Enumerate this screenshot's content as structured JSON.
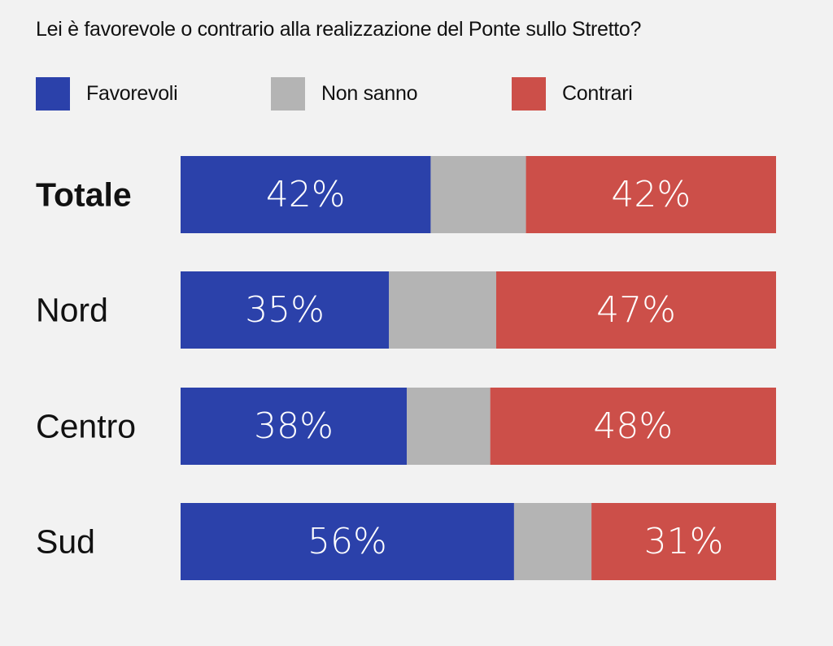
{
  "chart_data": {
    "type": "bar",
    "orientation": "horizontal",
    "stacked": true,
    "title": "Lei è favorevole o contrario alla realizzazione del Ponte sullo Stretto?",
    "categories": [
      "Totale",
      "Nord",
      "Centro",
      "Sud"
    ],
    "series": [
      {
        "name": "Favorevoli",
        "color": "#2b41aa",
        "values": [
          42,
          35,
          38,
          56
        ],
        "labels": [
          "42%",
          "35%",
          "38%",
          "56%"
        ],
        "bold": [
          false,
          false,
          false,
          true
        ]
      },
      {
        "name": "Non sanno",
        "color": "#b4b4b4",
        "values": [
          16,
          18,
          14,
          13
        ]
      },
      {
        "name": "Contrari",
        "color": "#cc4f49",
        "values": [
          42,
          47,
          48,
          31
        ],
        "labels": [
          "42%",
          "47%",
          "48%",
          "31%"
        ],
        "bold": [
          false,
          true,
          true,
          false
        ]
      }
    ],
    "bold_categories": [
      "Totale"
    ],
    "xlim": [
      0,
      100
    ],
    "legend": "top-left",
    "grid": false
  }
}
